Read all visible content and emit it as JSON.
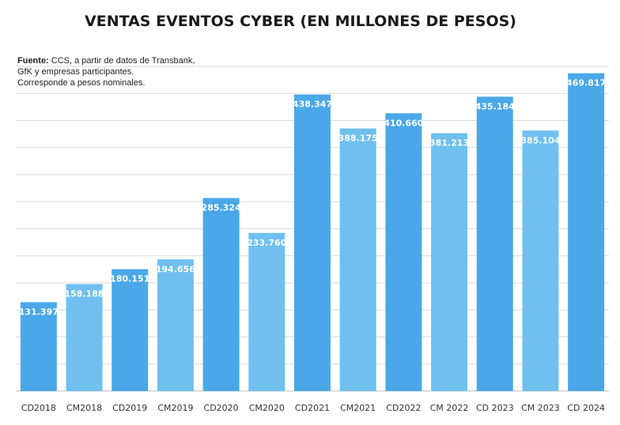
{
  "colors": {
    "dark_bar": "#4aa8e8",
    "light_bar": "#6fc0ef",
    "title": "#1a1a1a"
  },
  "source_note": {
    "bold_prefix": "Fuente:",
    "line1_rest": " CCS, a partir de datos de Transbank,",
    "line2": "GfK y empresas participantes.",
    "line3": "Corresponde a pesos nominales."
  },
  "chart_data": {
    "type": "bar",
    "title": "VENTAS EVENTOS CYBER (EN MILLONES DE PESOS)",
    "xlabel": "",
    "ylabel": "",
    "ylim": [
      0,
      480000
    ],
    "grid": true,
    "categories": [
      "CD2018",
      "CM2018",
      "CD2019",
      "CM2019",
      "CD2020",
      "CM2020",
      "CD2021",
      "CM2021",
      "CD2022",
      "CM 2022",
      "CD 2023",
      "CM 2023",
      "CD 2024"
    ],
    "values": [
      131397,
      158188,
      180151,
      194656,
      285324,
      233760,
      438347,
      388175,
      410660,
      381213,
      435184,
      385104,
      469817
    ],
    "labels": [
      "131.397",
      "158.188",
      "180.151",
      "194.656",
      "285.324",
      "233.760",
      "438.347",
      "388.175",
      "410.660",
      "381.213",
      "435.184",
      "385.104",
      "469.817"
    ],
    "shade": [
      "dark",
      "light",
      "dark",
      "light",
      "dark",
      "light",
      "dark",
      "light",
      "dark",
      "light",
      "dark",
      "light",
      "dark"
    ]
  }
}
